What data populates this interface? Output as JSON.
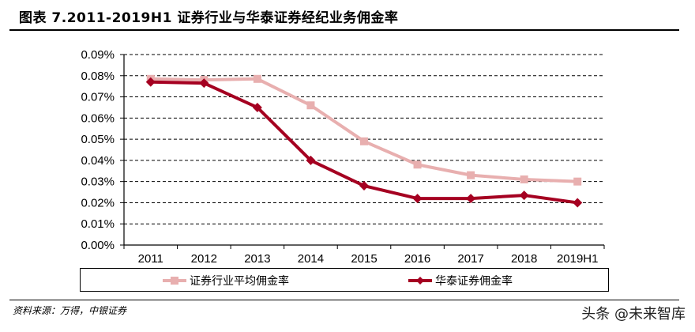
{
  "header": {
    "title": "图表 7.2011-2019H1 证券行业与华泰证券经纪业务佣金率"
  },
  "footer": {
    "source": "资料来源：万得，中银证券",
    "watermark": "头条 @未来智库"
  },
  "legend": {
    "items": [
      {
        "label": "证券行业平均佣金率",
        "color": "#E8AFAF",
        "marker": "square"
      },
      {
        "label": "华泰证券佣金率",
        "color": "#A50021",
        "marker": "diamond"
      }
    ]
  },
  "chart_data": {
    "type": "line",
    "title": "图表 7.2011-2019H1 证券行业与华泰证券经纪业务佣金率",
    "xlabel": "",
    "ylabel": "",
    "categories": [
      "2011",
      "2012",
      "2013",
      "2014",
      "2015",
      "2016",
      "2017",
      "2018",
      "2019H1"
    ],
    "y_ticks": [
      "0.00%",
      "0.01%",
      "0.02%",
      "0.03%",
      "0.04%",
      "0.05%",
      "0.06%",
      "0.07%",
      "0.08%",
      "0.09%"
    ],
    "ylim": [
      0,
      0.09
    ],
    "y_unit": "%",
    "grid": "horizontal dashed",
    "legend_position": "bottom",
    "series": [
      {
        "name": "证券行业平均佣金率",
        "color": "#E8AFAF",
        "marker": "square",
        "values": [
          0.0785,
          0.078,
          0.0785,
          0.066,
          0.049,
          0.038,
          0.033,
          0.031,
          0.03
        ]
      },
      {
        "name": "华泰证券佣金率",
        "color": "#A50021",
        "marker": "diamond",
        "values": [
          0.077,
          0.0765,
          0.065,
          0.04,
          0.028,
          0.022,
          0.022,
          0.0235,
          0.02
        ]
      }
    ]
  }
}
